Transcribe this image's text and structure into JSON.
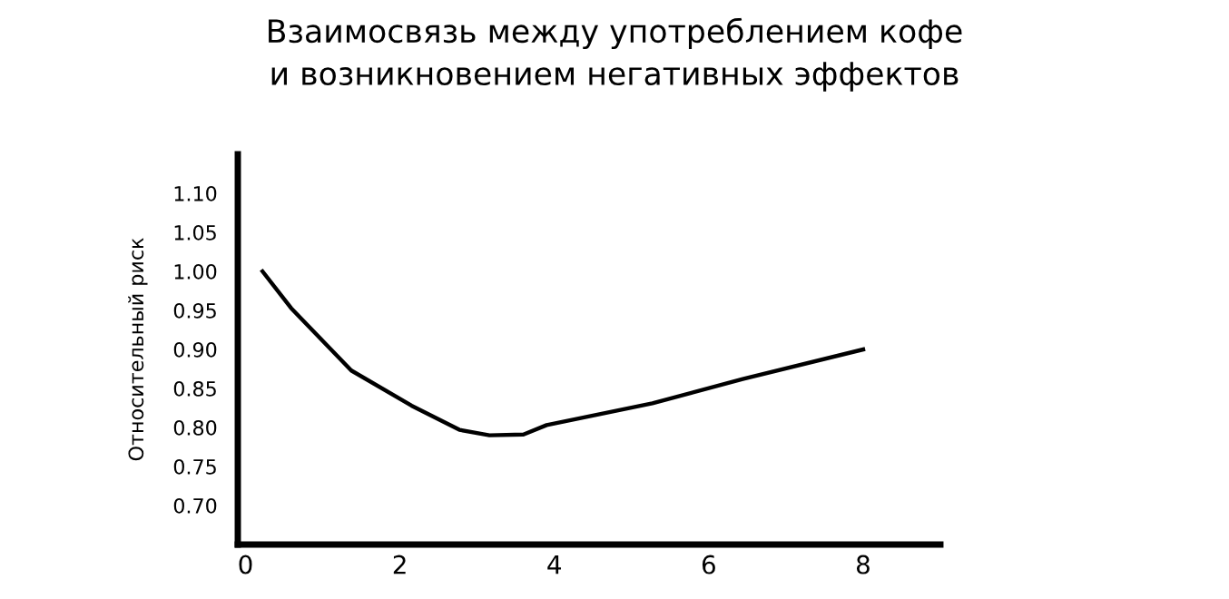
{
  "chart_data": {
    "type": "line",
    "title": "Взаимосвязь между употреблением кофе\nи возникновением негативных эффектов",
    "ylabel": "Относительный риск",
    "series": [
      {
        "color": "#000000",
        "x": [
          0.22,
          0.59,
          1.37,
          2.15,
          2.77,
          3.16,
          3.6,
          3.9,
          5.27,
          6.44,
          8.0
        ],
        "values": [
          1.0,
          0.953,
          0.873,
          0.828,
          0.797,
          0.79,
          0.791,
          0.803,
          0.831,
          0.862,
          0.9
        ]
      }
    ],
    "xlim": [
      -0.1,
      9
    ],
    "xticks": [
      0,
      2,
      4,
      6,
      8
    ],
    "ylim": [
      0.65,
      1.15
    ],
    "yticks": [
      {
        "value": 0.7,
        "label": "0.70"
      },
      {
        "value": 0.75,
        "label": "0.75"
      },
      {
        "value": 0.8,
        "label": "0.80"
      },
      {
        "value": 0.85,
        "label": "0.85"
      },
      {
        "value": 0.9,
        "label": "0.90"
      },
      {
        "value": 0.95,
        "label": "0.95"
      },
      {
        "value": 1.0,
        "label": "1.00"
      },
      {
        "value": 1.05,
        "label": "1.05"
      },
      {
        "value": 1.1,
        "label": "1.10"
      }
    ],
    "grid": false,
    "legend": false,
    "marker": "none",
    "line_style": "solid"
  }
}
